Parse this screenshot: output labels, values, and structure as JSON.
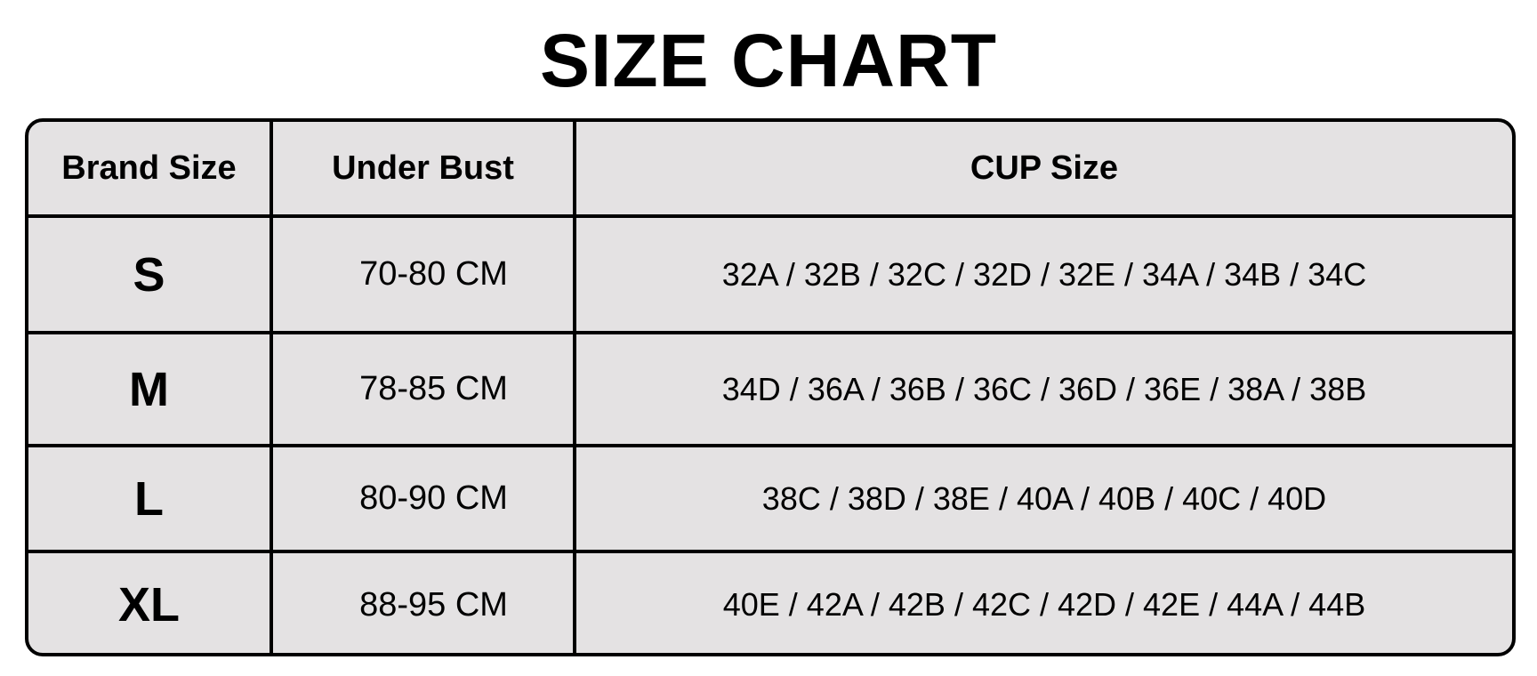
{
  "title": "SIZE CHART",
  "table": {
    "headers": [
      "Brand Size",
      "Under Bust",
      "CUP Size"
    ],
    "rows": [
      {
        "size": "S",
        "under_bust": "70-80 CM",
        "cup": "32A / 32B / 32C / 32D / 32E / 34A / 34B / 34C"
      },
      {
        "size": "M",
        "under_bust": "78-85 CM",
        "cup": "34D / 36A / 36B / 36C / 36D / 36E / 38A / 38B"
      },
      {
        "size": "L",
        "under_bust": "80-90 CM",
        "cup": "38C / 38D / 38E / 40A / 40B / 40C / 40D"
      },
      {
        "size": "XL",
        "under_bust": "88-95 CM",
        "cup": "40E / 42A / 42B / 42C / 42D / 42E / 44A / 44B"
      }
    ]
  },
  "colors": {
    "cell_bg": "#e4e2e3",
    "border": "#000000"
  }
}
